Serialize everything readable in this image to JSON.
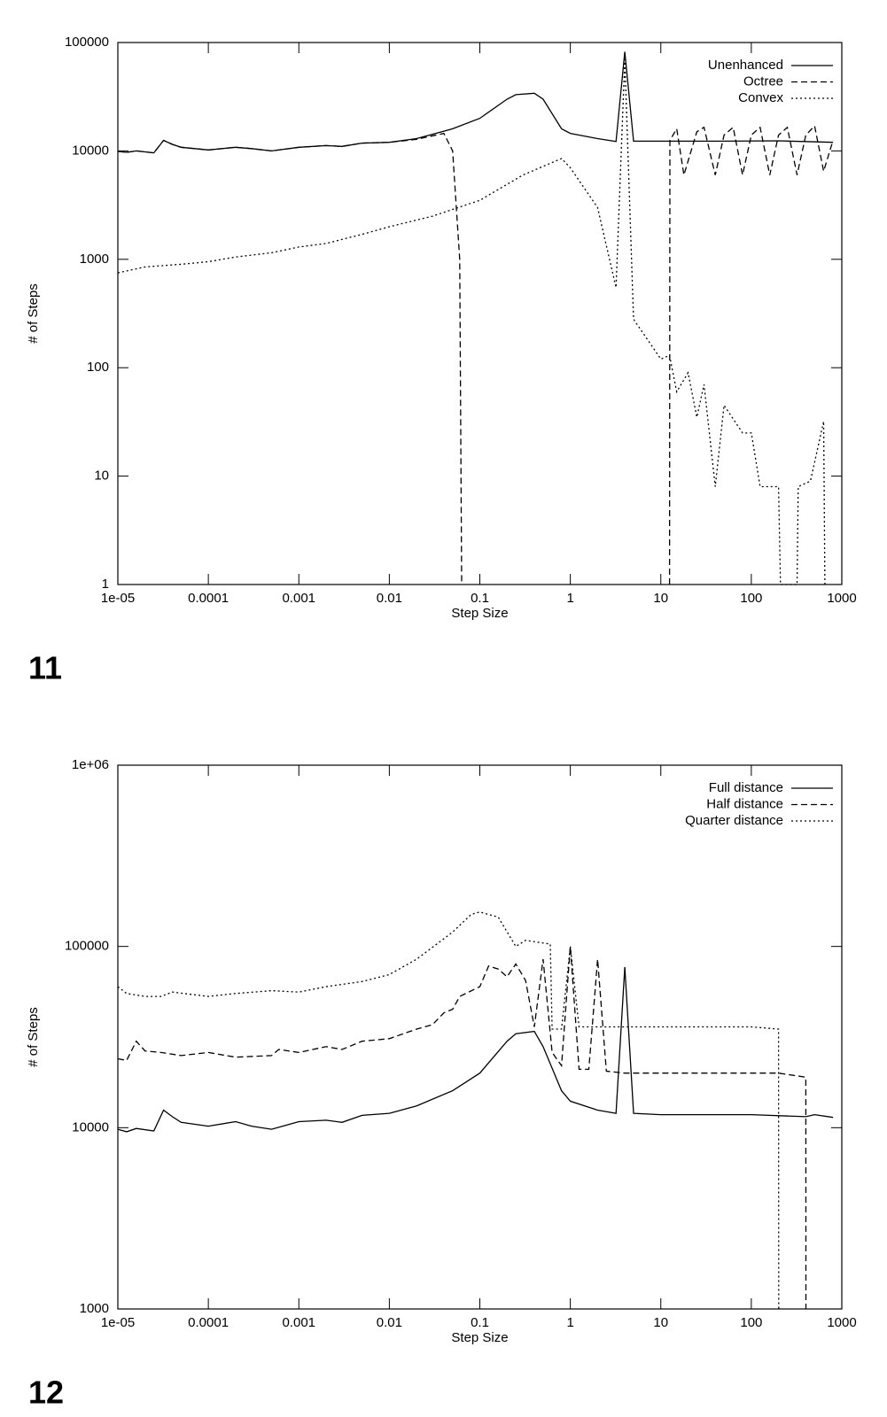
{
  "chart_data": [
    {
      "type": "line",
      "label": "11",
      "xlabel": "Step Size",
      "ylabel": "# of Steps",
      "xscale": "log",
      "yscale": "log",
      "legend": "upper right",
      "xlim": [
        1e-05,
        1000
      ],
      "ylim": [
        1,
        100000
      ],
      "xticks": [
        {
          "value": 1e-05,
          "label": "1e-05"
        },
        0.0001,
        0.001,
        0.01,
        0.1,
        1,
        10,
        100,
        1000
      ],
      "yticks": [
        1,
        10,
        100,
        1000,
        10000,
        100000
      ],
      "series": [
        {
          "name": "Unenhanced",
          "color": "#000000",
          "dash": "solid",
          "x": [
            1e-05,
            1.25e-05,
            1.6e-05,
            2.5e-05,
            3.2e-05,
            4e-05,
            5e-05,
            0.0001,
            0.0002,
            0.0003,
            0.0005,
            0.001,
            0.002,
            0.003,
            0.005,
            0.01,
            0.02,
            0.05,
            0.1,
            0.2,
            0.25,
            0.4,
            0.5,
            0.8,
            1,
            2,
            3.2,
            4,
            5,
            10,
            50,
            200,
            800
          ],
          "values": [
            9900,
            9700,
            10000,
            9600,
            12500,
            11500,
            10800,
            10200,
            10800,
            10500,
            10000,
            10800,
            11200,
            11000,
            11800,
            12000,
            13000,
            16000,
            20000,
            30000,
            33000,
            34000,
            30000,
            16000,
            14500,
            13000,
            12200,
            82000,
            12300,
            12300,
            12300,
            12400,
            12000
          ]
        },
        {
          "name": "Octree",
          "color": "#000000",
          "dash": "dashed",
          "x": [
            1e-05,
            1.25e-05,
            1.6e-05,
            2.5e-05,
            3.2e-05,
            4e-05,
            5e-05,
            0.0001,
            0.0002,
            0.0003,
            0.0005,
            0.001,
            0.002,
            0.003,
            0.005,
            0.01,
            0.02,
            0.04,
            0.05,
            0.06,
            0.063,
            1,
            12.5,
            12.6,
            15,
            18,
            25,
            30,
            40,
            50,
            63,
            80,
            100,
            125,
            160,
            200,
            250,
            320,
            400,
            500,
            630,
            800
          ],
          "values": [
            9900,
            9700,
            10000,
            9600,
            12500,
            11500,
            10800,
            10200,
            10800,
            10500,
            10000,
            10800,
            11200,
            11000,
            11800,
            12000,
            12800,
            14500,
            10000,
            1000,
            1,
            null,
            1,
            12500,
            16000,
            6000,
            15000,
            16500,
            6000,
            14000,
            16500,
            6000,
            14000,
            16500,
            6000,
            14000,
            16500,
            6000,
            14000,
            17000,
            6500,
            12500
          ]
        },
        {
          "name": "Convex",
          "color": "#000000",
          "dash": "dotted",
          "x": [
            1e-05,
            2e-05,
            5e-05,
            0.0001,
            0.0002,
            0.0005,
            0.001,
            0.002,
            0.005,
            0.01,
            0.03,
            0.1,
            0.3,
            0.8,
            1,
            2,
            3.2,
            4,
            5,
            10,
            12.5,
            15,
            20,
            25,
            30,
            40,
            50,
            80,
            100,
            125,
            200,
            210,
            320,
            330,
            450,
            630,
            650
          ],
          "values": [
            750,
            850,
            900,
            950,
            1050,
            1150,
            1300,
            1400,
            1700,
            2000,
            2500,
            3500,
            6000,
            8500,
            7000,
            3000,
            550,
            70000,
            280,
            120,
            130,
            60,
            90,
            35,
            70,
            8,
            45,
            25,
            25,
            8,
            8,
            1,
            1,
            8,
            9,
            32,
            1
          ]
        }
      ]
    },
    {
      "type": "line",
      "label": "12",
      "xlabel": "Step Size",
      "ylabel": "# of Steps",
      "xscale": "log",
      "yscale": "log",
      "legend": "upper right",
      "xlim": [
        1e-05,
        1000
      ],
      "ylim": [
        1000,
        1000000
      ],
      "xticks": [
        {
          "value": 1e-05,
          "label": "1e-05"
        },
        0.0001,
        0.001,
        0.01,
        0.1,
        1,
        10,
        100,
        1000
      ],
      "yticks": [
        1000,
        10000,
        100000,
        {
          "value": 1000000,
          "label": "1e+06"
        }
      ],
      "series": [
        {
          "name": "Full distance",
          "color": "#000000",
          "dash": "solid",
          "x": [
            1e-05,
            1.25e-05,
            1.6e-05,
            2.5e-05,
            3.2e-05,
            4e-05,
            5e-05,
            0.0001,
            0.0002,
            0.0003,
            0.0005,
            0.001,
            0.002,
            0.003,
            0.005,
            0.01,
            0.02,
            0.05,
            0.1,
            0.2,
            0.25,
            0.4,
            0.5,
            0.8,
            1,
            2,
            3.2,
            4,
            5,
            10,
            100,
            400,
            500,
            800
          ],
          "values": [
            9800,
            9500,
            9900,
            9600,
            12500,
            11500,
            10700,
            10200,
            10800,
            10200,
            9800,
            10800,
            11000,
            10700,
            11700,
            12000,
            13200,
            16000,
            20000,
            30000,
            33000,
            34000,
            28000,
            16000,
            14000,
            12500,
            12000,
            77000,
            12000,
            11800,
            11800,
            11500,
            11800,
            11400
          ]
        },
        {
          "name": "Half distance",
          "color": "#000000",
          "dash": "dashed",
          "x": [
            1e-05,
            1.25e-05,
            1.6e-05,
            2e-05,
            3e-05,
            5e-05,
            0.0001,
            0.0002,
            0.0005,
            0.0006,
            0.001,
            0.002,
            0.003,
            0.005,
            0.01,
            0.02,
            0.03,
            0.04,
            0.05,
            0.06,
            0.1,
            0.125,
            0.16,
            0.2,
            0.25,
            0.32,
            0.4,
            0.5,
            0.63,
            0.8,
            1,
            1.25,
            1.6,
            2,
            2.5,
            4,
            10,
            100,
            200,
            400,
            401
          ],
          "values": [
            24000,
            23500,
            30000,
            26500,
            26000,
            25000,
            26000,
            24500,
            25000,
            27000,
            26000,
            28000,
            27000,
            30000,
            31000,
            35000,
            37000,
            43000,
            45000,
            53000,
            60000,
            78000,
            75000,
            68000,
            80000,
            65000,
            36000,
            85000,
            26000,
            22000,
            100000,
            21000,
            21000,
            85000,
            20500,
            20000,
            20000,
            20000,
            20000,
            19000,
            1000
          ]
        },
        {
          "name": "Quarter distance",
          "color": "#000000",
          "dash": "dotted",
          "x": [
            1e-05,
            1.25e-05,
            2e-05,
            3e-05,
            4e-05,
            0.0001,
            0.0002,
            0.0005,
            0.001,
            0.002,
            0.005,
            0.01,
            0.02,
            0.05,
            0.08,
            0.1,
            0.16,
            0.25,
            0.32,
            0.6,
            0.63,
            0.8,
            1,
            1.25,
            10,
            100,
            200,
            201
          ],
          "values": [
            60000,
            55000,
            53000,
            53000,
            56000,
            53000,
            55000,
            57000,
            56000,
            60000,
            64000,
            70000,
            85000,
            120000,
            150000,
            155000,
            145000,
            100000,
            108000,
            103000,
            35000,
            35000,
            100000,
            36000,
            36000,
            36000,
            35000,
            1000
          ]
        }
      ]
    }
  ]
}
